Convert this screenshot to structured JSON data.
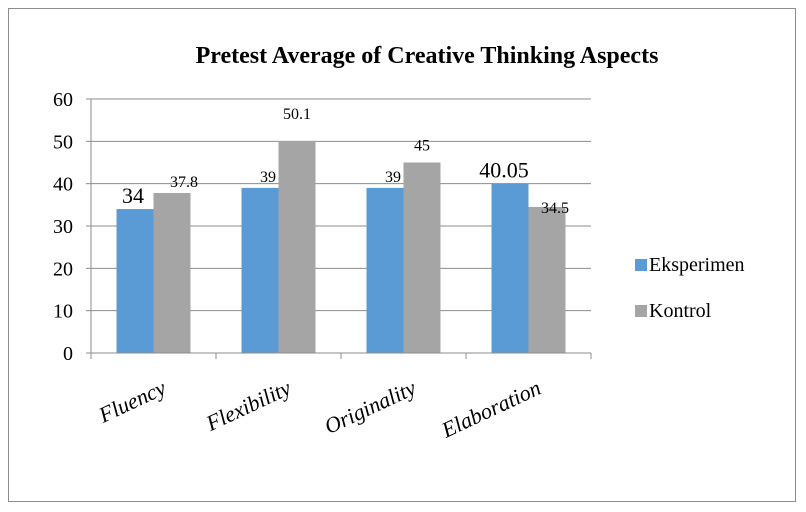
{
  "chart_data": {
    "type": "bar",
    "title": "Pretest Average of Creative Thinking Aspects",
    "xlabel": "",
    "ylabel": "",
    "categories": [
      "Fluency",
      "Flexibility",
      "Originality",
      "Elaboration"
    ],
    "series": [
      {
        "name": "Eksperimen",
        "values": [
          34,
          39,
          39,
          40.05
        ],
        "labels": [
          "34",
          "39",
          "39",
          "40.05"
        ],
        "color": "#5b9bd5"
      },
      {
        "name": "Kontrol",
        "values": [
          37.8,
          50.1,
          45,
          34.5
        ],
        "labels": [
          "37.8",
          "50.1",
          "45",
          "34.5"
        ],
        "color": "#a5a5a5"
      }
    ],
    "ylim": [
      0,
      60
    ],
    "yticks": [
      "0",
      "10",
      "20",
      "30",
      "40",
      "50",
      "60"
    ],
    "grid": true,
    "legend": "right",
    "category_label_style": "italic, rotated"
  }
}
